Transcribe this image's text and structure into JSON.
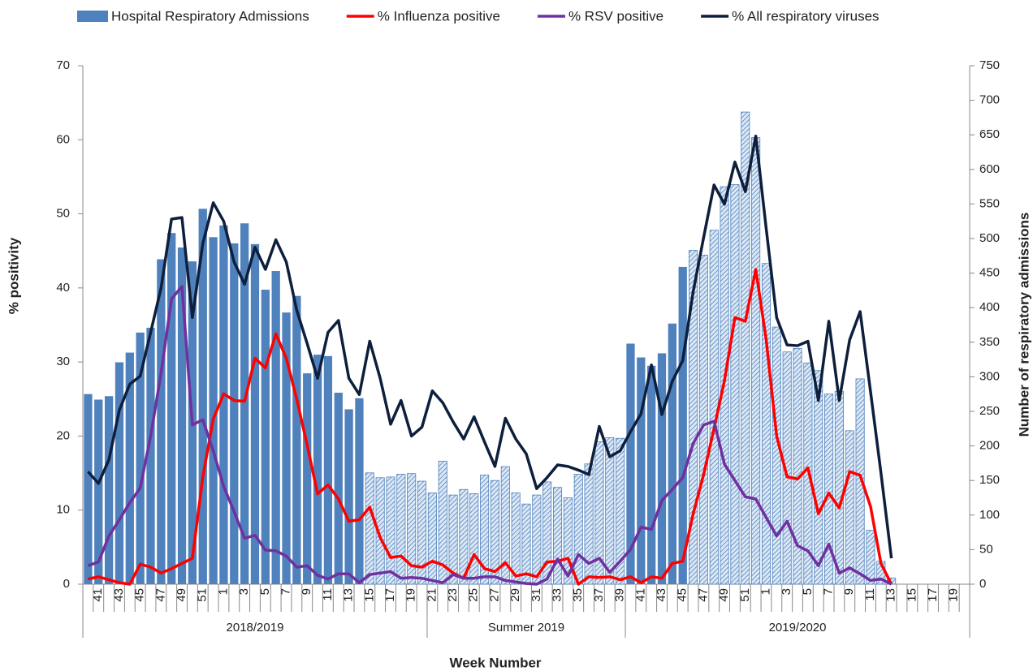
{
  "chart_data": {
    "type": "combo",
    "x_label": "Week Number",
    "y_label": "% positivity",
    "y2_label": "Number of respiratory admissions",
    "categories": [
      null,
      "41",
      null,
      "43",
      null,
      "45",
      null,
      "47",
      null,
      "49",
      null,
      "51",
      null,
      "1",
      null,
      "3",
      null,
      "5",
      null,
      "7",
      null,
      "9",
      null,
      "11",
      null,
      "13",
      null,
      "15",
      null,
      "17",
      null,
      "19",
      null,
      "21",
      null,
      "23",
      null,
      "25",
      null,
      "27",
      null,
      "29",
      null,
      "31",
      null,
      "33",
      null,
      "35",
      null,
      "37",
      null,
      "39",
      null,
      "41",
      null,
      "43",
      null,
      "45",
      null,
      "47",
      null,
      "49",
      null,
      "51",
      null,
      "1",
      null,
      "3",
      null,
      "5",
      null,
      "7",
      null,
      "9",
      null,
      "11",
      null,
      "13",
      null,
      "15",
      null,
      "17",
      null,
      "19",
      null
    ],
    "groups": [
      {
        "label": "2018/2019",
        "weeks": 33
      },
      {
        "label": "Summer 2019",
        "weeks": 19
      },
      {
        "label": "2019/2020",
        "weeks": 33
      }
    ],
    "ylim": [
      0,
      70
    ],
    "yticks": [
      0,
      10,
      20,
      30,
      40,
      50,
      60,
      70
    ],
    "y2lim": [
      0,
      750
    ],
    "y2ticks": [
      0,
      50,
      100,
      150,
      200,
      250,
      300,
      350,
      400,
      450,
      500,
      550,
      600,
      650,
      700,
      750
    ],
    "series": [
      {
        "name": "Hospital Respiratory Admissions",
        "type": "bar",
        "axis": "y2",
        "color": "#4f81bd",
        "values": [
          275,
          267,
          272,
          321,
          335,
          364,
          371,
          470,
          508,
          487,
          467,
          543,
          502,
          519,
          493,
          522,
          492,
          426,
          453,
          393,
          417,
          305,
          332,
          330,
          277,
          253,
          269,
          161,
          154,
          155,
          159,
          160,
          149,
          132,
          178,
          129,
          137,
          131,
          158,
          150,
          170,
          132,
          116,
          129,
          148,
          140,
          125,
          159,
          174,
          206,
          212,
          211,
          348,
          328,
          316,
          334,
          377,
          459,
          483,
          476,
          512,
          575,
          578,
          683,
          646,
          464,
          372,
          336,
          341,
          320,
          309,
          275,
          279,
          222,
          297,
          78,
          33,
          9,
          null,
          null,
          null,
          null,
          null,
          null,
          null
        ],
        "hatched": [
          false,
          false,
          false,
          false,
          false,
          false,
          false,
          false,
          false,
          false,
          false,
          false,
          false,
          false,
          false,
          false,
          false,
          false,
          false,
          false,
          false,
          false,
          false,
          false,
          false,
          false,
          false,
          true,
          true,
          true,
          true,
          true,
          true,
          true,
          true,
          true,
          true,
          true,
          true,
          true,
          true,
          true,
          true,
          true,
          true,
          true,
          true,
          true,
          true,
          true,
          true,
          true,
          false,
          false,
          false,
          false,
          false,
          false,
          true,
          true,
          true,
          true,
          true,
          true,
          true,
          true,
          true,
          true,
          true,
          true,
          true,
          true,
          true,
          true,
          true,
          true,
          true,
          true,
          true,
          true,
          true,
          true,
          true,
          true,
          true
        ]
      },
      {
        "name": "% Influenza positive",
        "type": "line",
        "color": "#ff0000",
        "values": [
          0.7,
          1.0,
          0.6,
          0.2,
          0,
          2.7,
          2.3,
          1.5,
          2.1,
          2.8,
          3.5,
          14.5,
          22.3,
          25.7,
          24.8,
          24.7,
          30.5,
          29.2,
          33.8,
          30.5,
          25.0,
          18.8,
          12.2,
          13.4,
          11.5,
          8.5,
          8.7,
          10.4,
          6.3,
          3.6,
          3.8,
          2.5,
          2.3,
          3.1,
          2.6,
          1.5,
          0.8,
          4.0,
          2.1,
          1.7,
          2.9,
          1.1,
          1.4,
          1.0,
          3.0,
          3.1,
          3.5,
          0,
          1.0,
          0.9,
          1.0,
          0.6,
          1.0,
          0.2,
          1.0,
          0.8,
          2.8,
          3.1,
          9.5,
          14.8,
          21.0,
          27.5,
          36.0,
          35.5,
          42.5,
          33.0,
          20.0,
          14.5,
          14.2,
          15.7,
          9.5,
          12.3,
          10.3,
          15.2,
          14.7,
          10.5,
          2.8,
          0,
          null,
          null,
          null,
          null,
          null,
          null,
          null
        ]
      },
      {
        "name": "% RSV positive",
        "type": "line",
        "color": "#7030a0",
        "values": [
          2.5,
          3.0,
          6.5,
          8.7,
          11.0,
          13.0,
          20.0,
          28.5,
          38.5,
          40.2,
          21.5,
          22.2,
          18.0,
          13.2,
          9.8,
          6.2,
          6.6,
          4.6,
          4.5,
          3.8,
          2.3,
          2.5,
          1.2,
          0.7,
          1.4,
          1.4,
          0.2,
          1.3,
          1.5,
          1.7,
          0.8,
          0.9,
          0.8,
          0.5,
          0.2,
          1.3,
          0.8,
          0.8,
          1.0,
          1.0,
          0.5,
          0.3,
          0.1,
          0,
          0.7,
          3.4,
          1.1,
          4.0,
          2.8,
          3.5,
          1.6,
          3.1,
          4.7,
          7.7,
          7.4,
          11.3,
          12.8,
          14.4,
          19.0,
          21.5,
          22.0,
          16.2,
          14.0,
          11.8,
          11.5,
          9.0,
          6.5,
          8.5,
          5.2,
          4.5,
          2.5,
          5.4,
          1.5,
          2.2,
          1.4,
          0.5,
          0.7,
          0,
          null,
          null,
          null,
          null,
          null,
          null,
          null
        ]
      },
      {
        "name": "% All respiratory viruses",
        "type": "line",
        "color": "#0d1f3c",
        "values": [
          15.2,
          13.6,
          16.8,
          23.5,
          27.0,
          28.1,
          34.0,
          40.0,
          49.3,
          49.5,
          36.0,
          46.0,
          51.5,
          49.0,
          43.5,
          40.5,
          45.5,
          42.5,
          46.5,
          43.5,
          37.0,
          32.5,
          27.8,
          34.0,
          35.6,
          27.8,
          25.6,
          32.8,
          27.8,
          21.6,
          24.8,
          20.0,
          21.2,
          26.1,
          24.5,
          21.9,
          19.6,
          22.6,
          19.2,
          15.9,
          22.4,
          19.6,
          17.6,
          12.9,
          14.4,
          16.1,
          15.9,
          15.4,
          14.8,
          21.3,
          17.2,
          18.0,
          20.6,
          23.0,
          29.6,
          22.9,
          27.4,
          30.2,
          39.5,
          46.8,
          53.9,
          51.3,
          57.0,
          53.0,
          60.5,
          48.0,
          36.0,
          32.3,
          32.2,
          32.8,
          24.8,
          35.5,
          24.8,
          33.0,
          36.8,
          26.0,
          15.0,
          3.5,
          null,
          null,
          null,
          null,
          null,
          null,
          null
        ]
      }
    ]
  }
}
